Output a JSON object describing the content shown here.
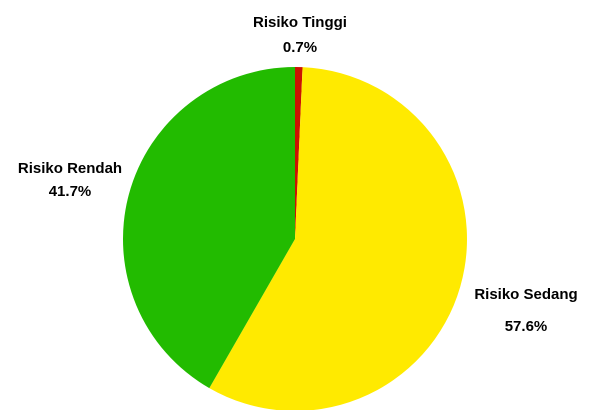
{
  "chart_data": {
    "type": "pie",
    "start_angle_deg": 0,
    "direction": "clockwise",
    "slices": [
      {
        "label": "Risiko Tinggi",
        "value": 0.7,
        "percent_label": "0.7%",
        "color": "#cc1100"
      },
      {
        "label": "Risiko Sedang",
        "value": 57.6,
        "percent_label": "57.6%",
        "color": "#ffea00"
      },
      {
        "label": "Risiko Rendah",
        "value": 41.7,
        "percent_label": "41.7%",
        "color": "#22bb00"
      }
    ]
  }
}
